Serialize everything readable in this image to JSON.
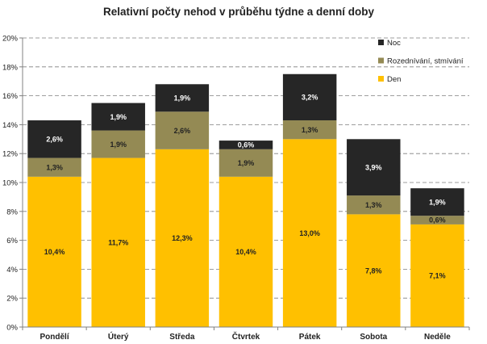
{
  "chart_data": {
    "type": "bar",
    "stacked": true,
    "title": "Relativní počty nehod v průběhu týdne a denní doby",
    "categories": [
      "Pondělí",
      "Úterý",
      "Středa",
      "Čtvrtek",
      "Pátek",
      "Sobota",
      "Neděle"
    ],
    "series": [
      {
        "name": "Den",
        "color": "#FFC000",
        "label_color": "#222222",
        "values": [
          10.4,
          11.7,
          12.3,
          10.4,
          13.0,
          7.8,
          7.1
        ],
        "labels": [
          "10,4%",
          "11,7%",
          "12,3%",
          "10,4%",
          "13,0%",
          "7,8%",
          "7,1%"
        ]
      },
      {
        "name": "Rozednívání, stmívání",
        "color": "#948A54",
        "label_color": "#222222",
        "values": [
          1.3,
          1.9,
          2.6,
          1.9,
          1.3,
          1.3,
          0.6
        ],
        "labels": [
          "1,3%",
          "1,9%",
          "2,6%",
          "1,9%",
          "1,3%",
          "1,3%",
          "0,6%"
        ]
      },
      {
        "name": "Noc",
        "color": "#262626",
        "label_color": "#ffffff",
        "values": [
          2.6,
          1.9,
          1.9,
          0.6,
          3.2,
          3.9,
          1.9
        ],
        "labels": [
          "2,6%",
          "1,9%",
          "1,9%",
          "0,6%",
          "3,2%",
          "3,9%",
          "1,9%"
        ]
      }
    ],
    "ylim": [
      0,
      20
    ],
    "yticks": [
      "0%",
      "2%",
      "4%",
      "6%",
      "8%",
      "10%",
      "12%",
      "14%",
      "16%",
      "18%",
      "20%"
    ],
    "grid": true,
    "legend_position": "top-right",
    "legend_order": [
      "Noc",
      "Rozednívání, stmívání",
      "Den"
    ]
  }
}
